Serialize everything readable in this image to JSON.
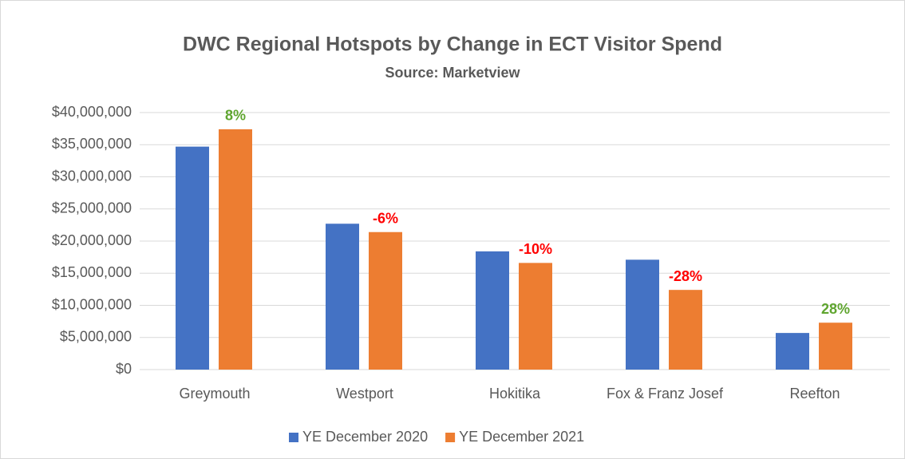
{
  "chart_data": {
    "type": "bar",
    "title": "DWC Regional Hotspots by Change in ECT Visitor Spend",
    "subtitle": "Source: Marketview",
    "categories": [
      "Greymouth",
      "Westport",
      "Hokitika",
      "Fox & Franz Josef",
      "Reefton"
    ],
    "series": [
      {
        "name": "YE December 2020",
        "color": "#4472c4",
        "values": [
          34700000,
          22700000,
          18400000,
          17100000,
          5700000
        ]
      },
      {
        "name": "YE December 2021",
        "color": "#ed7d31",
        "values": [
          37400000,
          21400000,
          16600000,
          12400000,
          7300000
        ]
      }
    ],
    "annotations": [
      {
        "text": "8%",
        "color": "#5fa52f"
      },
      {
        "text": "-6%",
        "color": "#ff0000"
      },
      {
        "text": "-10%",
        "color": "#ff0000"
      },
      {
        "text": "-28%",
        "color": "#ff0000"
      },
      {
        "text": "28%",
        "color": "#5fa52f"
      }
    ],
    "ylim": [
      0,
      40000000
    ],
    "yticks": [
      {
        "value": 0,
        "label": "$0"
      },
      {
        "value": 5000000,
        "label": "$5,000,000"
      },
      {
        "value": 10000000,
        "label": "$10,000,000"
      },
      {
        "value": 15000000,
        "label": "$15,000,000"
      },
      {
        "value": 20000000,
        "label": "$20,000,000"
      },
      {
        "value": 25000000,
        "label": "$25,000,000"
      },
      {
        "value": 30000000,
        "label": "$30,000,000"
      },
      {
        "value": 35000000,
        "label": "$35,000,000"
      },
      {
        "value": 40000000,
        "label": "$40,000,000"
      }
    ],
    "grid": true,
    "legend": "bottom"
  }
}
